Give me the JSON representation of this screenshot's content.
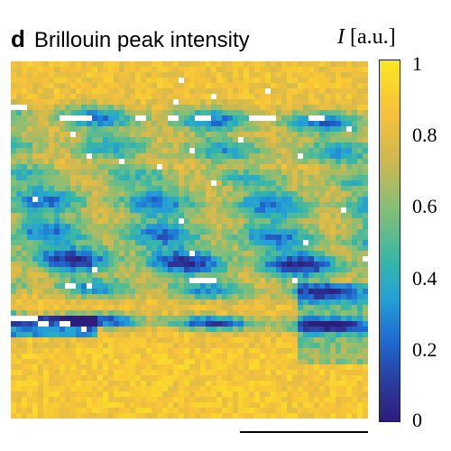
{
  "panel": {
    "letter": "d",
    "title": "Brillouin peak intensity",
    "unit_symbol": "I",
    "unit": "[a.u.]"
  },
  "colorbar": {
    "ticks": [
      "1",
      "0.8",
      "0.6",
      "0.4",
      "0.2",
      "0"
    ],
    "colormap": [
      "#fbe622",
      "#f7c23a",
      "#d7b64b",
      "#7fbf7a",
      "#35b6a8",
      "#24a0d6",
      "#1f68cf",
      "#2b3a9b",
      "#2d1d7a"
    ]
  },
  "image": {
    "description_colors": {
      "background": "#f5b53c",
      "band_cyan": "#30b7d2",
      "band_green": "#7fbf83",
      "saturated": "#ffffff"
    }
  }
}
